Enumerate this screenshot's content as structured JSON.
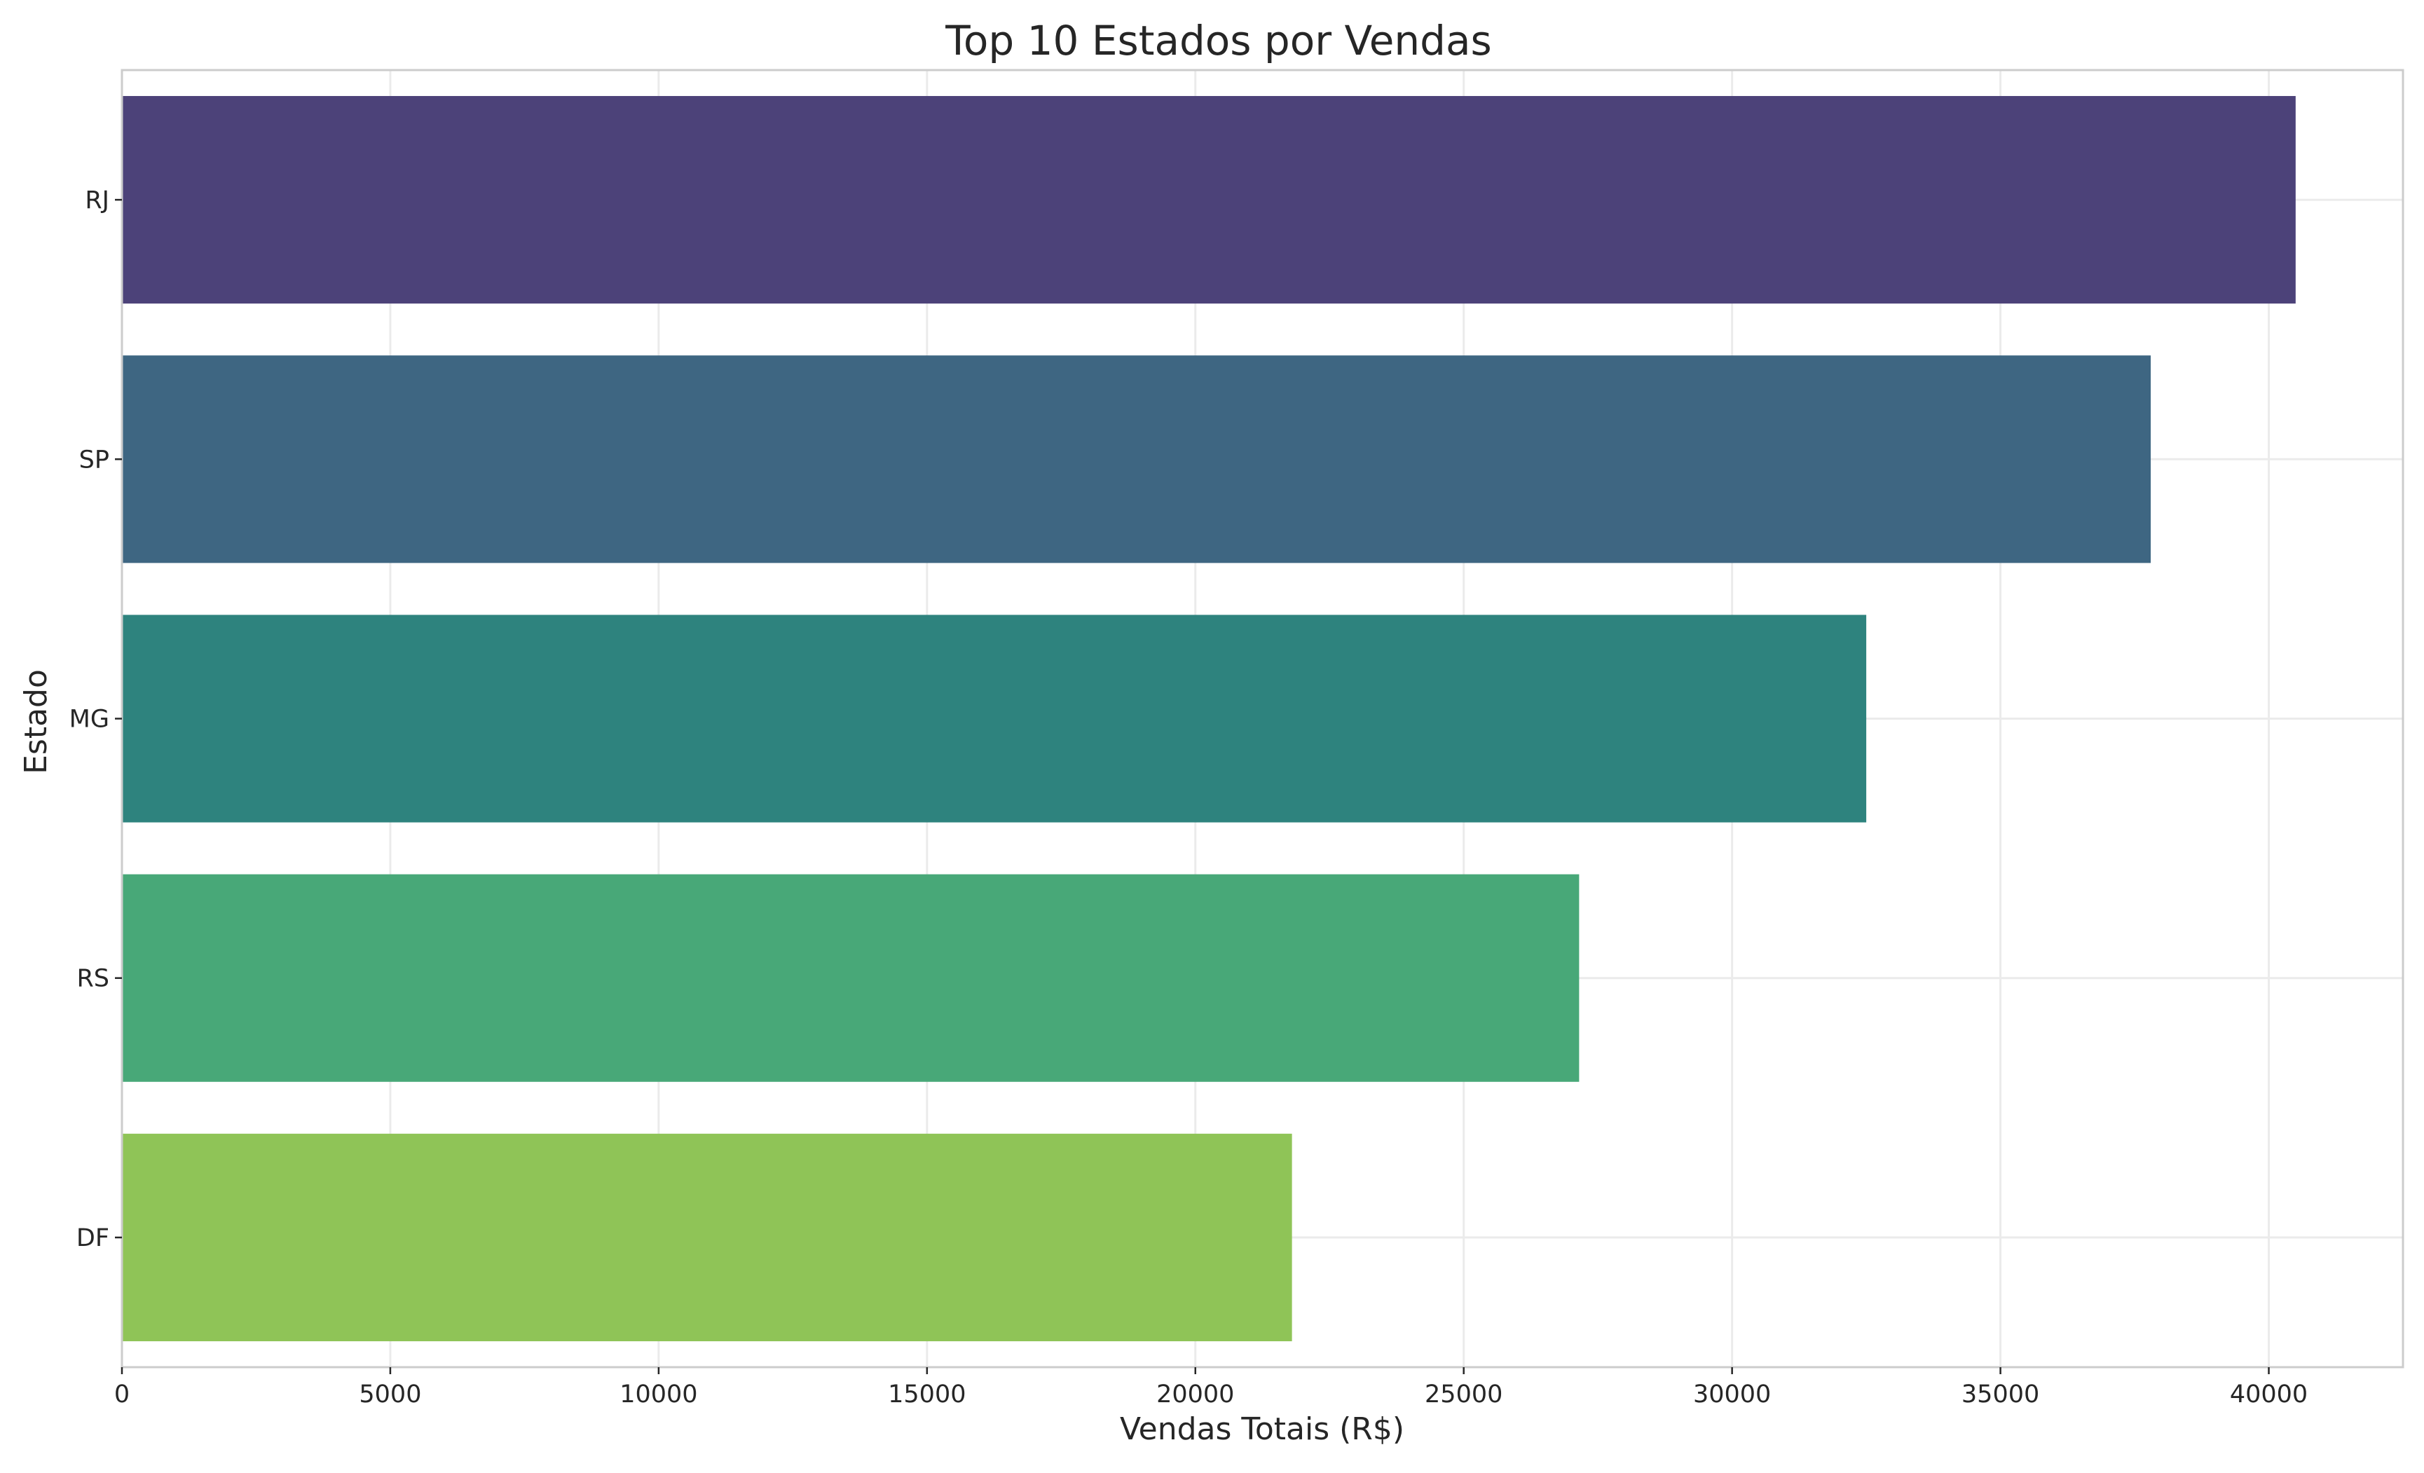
{
  "chart_data": {
    "type": "bar",
    "orientation": "horizontal",
    "title": "Top 10 Estados por Vendas",
    "xlabel": "Vendas Totais (R$)",
    "ylabel": "Estado",
    "categories": [
      "RJ",
      "SP",
      "MG",
      "RS",
      "DF"
    ],
    "values": [
      40500,
      37800,
      32500,
      27150,
      21800
    ],
    "colors": [
      "#4c4279",
      "#3e6682",
      "#2e837e",
      "#48a878",
      "#8fc457"
    ],
    "xlim": [
      0,
      42500
    ],
    "xticks": [
      0,
      5000,
      10000,
      15000,
      20000,
      25000,
      30000,
      35000,
      40000
    ],
    "grid": true,
    "legend": "none"
  }
}
